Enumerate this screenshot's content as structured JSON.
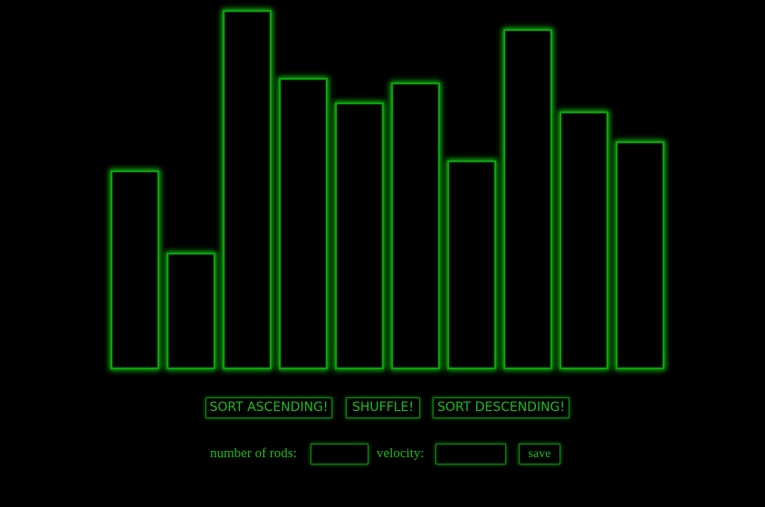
{
  "rods": {
    "values": [
      41,
      24,
      74,
      60,
      55,
      59,
      43,
      70,
      53,
      47
    ]
  },
  "controls": {
    "sort_ascending_label": "SORT ASCENDING!",
    "shuffle_label": "SHUFFLE!",
    "sort_descending_label": "SORT DESCENDING!"
  },
  "settings": {
    "rods_label": "number of rods:",
    "rods_value": "",
    "velocity_label": "velocity:",
    "velocity_value": "",
    "save_label": "save"
  },
  "colors": {
    "accent": "#1bb81b",
    "background": "#000000"
  }
}
